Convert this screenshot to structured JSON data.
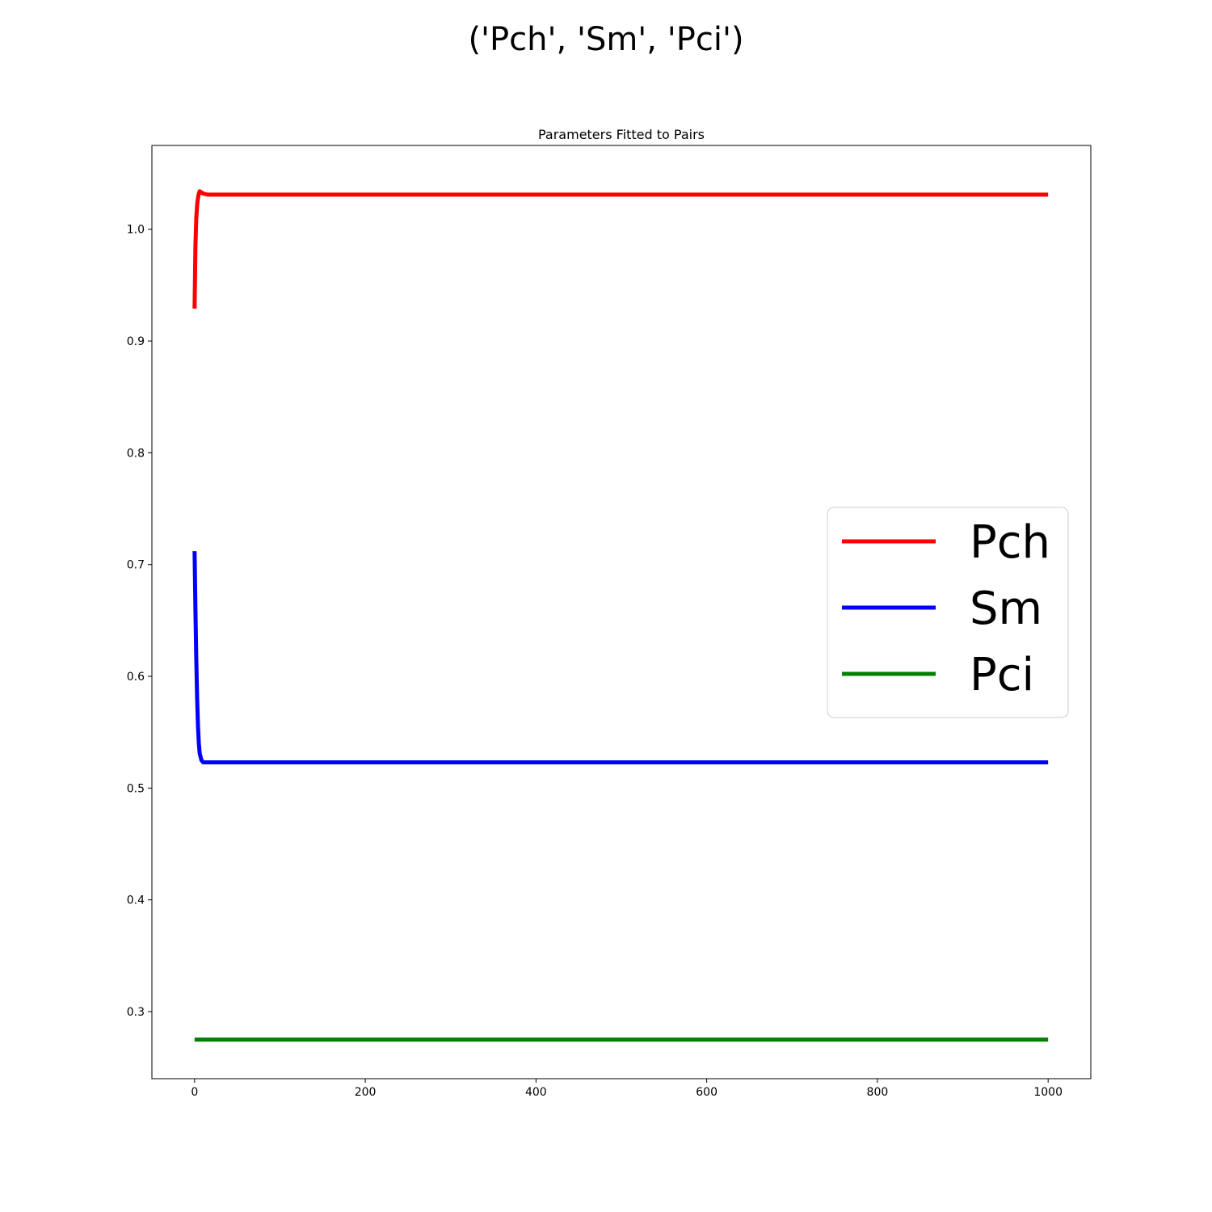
{
  "figure": {
    "suptitle": "('Pch', 'Sm', 'Pci')"
  },
  "chart_data": {
    "type": "line",
    "title": "Parameters Fitted to Pairs",
    "xlabel": "",
    "ylabel": "",
    "xlim": [
      -50,
      1050
    ],
    "ylim": [
      0.24,
      1.075
    ],
    "x_ticks": [
      0,
      200,
      400,
      600,
      800,
      1000
    ],
    "x_tick_labels": [
      "0",
      "200",
      "400",
      "600",
      "800",
      "1000"
    ],
    "y_ticks": [
      0.3,
      0.4,
      0.5,
      0.6,
      0.7,
      0.8,
      0.9,
      1.0
    ],
    "y_tick_labels": [
      "0.3",
      "0.4",
      "0.5",
      "0.6",
      "0.7",
      "0.8",
      "0.9",
      "1.0"
    ],
    "grid": false,
    "legend_position": "center-right",
    "series": [
      {
        "name": "Pch",
        "color": "#ff0000",
        "x": [
          0,
          1,
          2,
          3,
          4,
          5,
          6,
          8,
          10,
          15,
          20,
          1000
        ],
        "y": [
          0.929,
          0.985,
          1.01,
          1.022,
          1.028,
          1.032,
          1.034,
          1.033,
          1.032,
          1.031,
          1.031,
          1.031
        ]
      },
      {
        "name": "Sm",
        "color": "#0000ff",
        "x": [
          0,
          1,
          2,
          3,
          4,
          5,
          6,
          8,
          10,
          15,
          20,
          1000
        ],
        "y": [
          0.712,
          0.66,
          0.615,
          0.58,
          0.555,
          0.54,
          0.531,
          0.525,
          0.523,
          0.523,
          0.523,
          0.523
        ]
      },
      {
        "name": "Pci",
        "color": "#008000",
        "x": [
          0,
          1000
        ],
        "y": [
          0.275,
          0.275
        ]
      }
    ]
  }
}
